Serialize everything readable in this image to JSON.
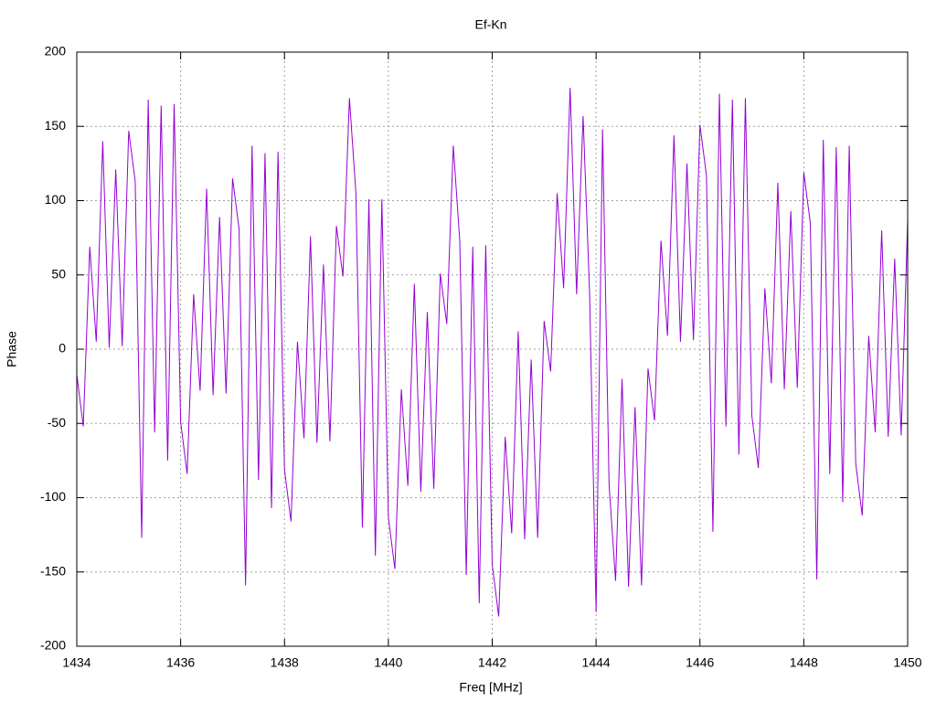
{
  "chart_data": {
    "type": "line",
    "title": "Ef-Kn",
    "x_label": "Freq [MHz]",
    "y_label": "Phase",
    "color": "#9400d3",
    "grid": true,
    "xlim": [
      1434,
      1450
    ],
    "xticks": [
      1434,
      1436,
      1438,
      1440,
      1442,
      1444,
      1446,
      1448,
      1450
    ],
    "ylim": [
      -200,
      200
    ],
    "yticks": [
      -200,
      -150,
      -100,
      -50,
      0,
      50,
      100,
      150,
      200
    ],
    "x": [
      1434,
      1434.125,
      1434.25,
      1434.375,
      1434.5,
      1434.625,
      1434.75,
      1434.875,
      1435,
      1435.125,
      1435.25,
      1435.375,
      1435.5,
      1435.625,
      1435.75,
      1435.875,
      1436,
      1436.125,
      1436.25,
      1436.375,
      1436.5,
      1436.625,
      1436.75,
      1436.875,
      1437,
      1437.125,
      1437.25,
      1437.375,
      1437.5,
      1437.625,
      1437.75,
      1437.875,
      1438,
      1438.125,
      1438.25,
      1438.375,
      1438.5,
      1438.625,
      1438.75,
      1438.875,
      1439,
      1439.125,
      1439.25,
      1439.375,
      1439.5,
      1439.625,
      1439.75,
      1439.875,
      1440,
      1440.125,
      1440.25,
      1440.375,
      1440.5,
      1440.625,
      1440.75,
      1440.875,
      1441,
      1441.125,
      1441.25,
      1441.375,
      1441.5,
      1441.625,
      1441.75,
      1441.875,
      1442,
      1442.125,
      1442.25,
      1442.375,
      1442.5,
      1442.625,
      1442.75,
      1442.875,
      1443,
      1443.125,
      1443.25,
      1443.375,
      1443.5,
      1443.625,
      1443.75,
      1443.875,
      1444,
      1444.125,
      1444.25,
      1444.375,
      1444.5,
      1444.625,
      1444.75,
      1444.875,
      1445,
      1445.125,
      1445.25,
      1445.375,
      1445.5,
      1445.625,
      1445.75,
      1445.875,
      1446,
      1446.125,
      1446.25,
      1446.375,
      1446.5,
      1446.625,
      1446.75,
      1446.875,
      1447,
      1447.125,
      1447.25,
      1447.375,
      1447.5,
      1447.625,
      1447.75,
      1447.875,
      1448,
      1448.125,
      1448.25,
      1448.375,
      1448.5,
      1448.625,
      1448.75,
      1448.875,
      1449,
      1449.125,
      1449.25,
      1449.375,
      1449.5,
      1449.625,
      1449.75,
      1449.875,
      1450
    ],
    "values": [
      -17,
      -52,
      69,
      5,
      140,
      1,
      121,
      2,
      147,
      113,
      -127,
      168,
      -56,
      164,
      -75,
      165,
      -49,
      -84,
      37,
      -28,
      108,
      -31,
      89,
      -30,
      115,
      81,
      -159,
      137,
      -88,
      132,
      -107,
      133,
      -81,
      -116,
      5,
      -60,
      76,
      -63,
      57,
      -62,
      83,
      49,
      169,
      105,
      -120,
      101,
      -139,
      101,
      -113,
      -148,
      -27,
      -92,
      44,
      -96,
      25,
      -94,
      51,
      17,
      137,
      73,
      -152,
      69,
      -171,
      70,
      -145,
      -180,
      -59,
      -124,
      12,
      -128,
      -7,
      -127,
      19,
      -15,
      105,
      41,
      176,
      37,
      157,
      38,
      -177,
      148,
      -91,
      -156,
      -20,
      -160,
      -39,
      -159,
      -13,
      -48,
      73,
      9,
      144,
      5,
      125,
      6,
      151,
      117,
      -123,
      172,
      -52,
      168,
      -71,
      169,
      -45,
      -80,
      41,
      -23,
      112,
      -27,
      93,
      -26,
      119,
      85,
      -155,
      141,
      -84,
      136,
      -103,
      137,
      -77,
      -112,
      9,
      -56,
      80,
      -59,
      61,
      -58,
      87
    ]
  }
}
